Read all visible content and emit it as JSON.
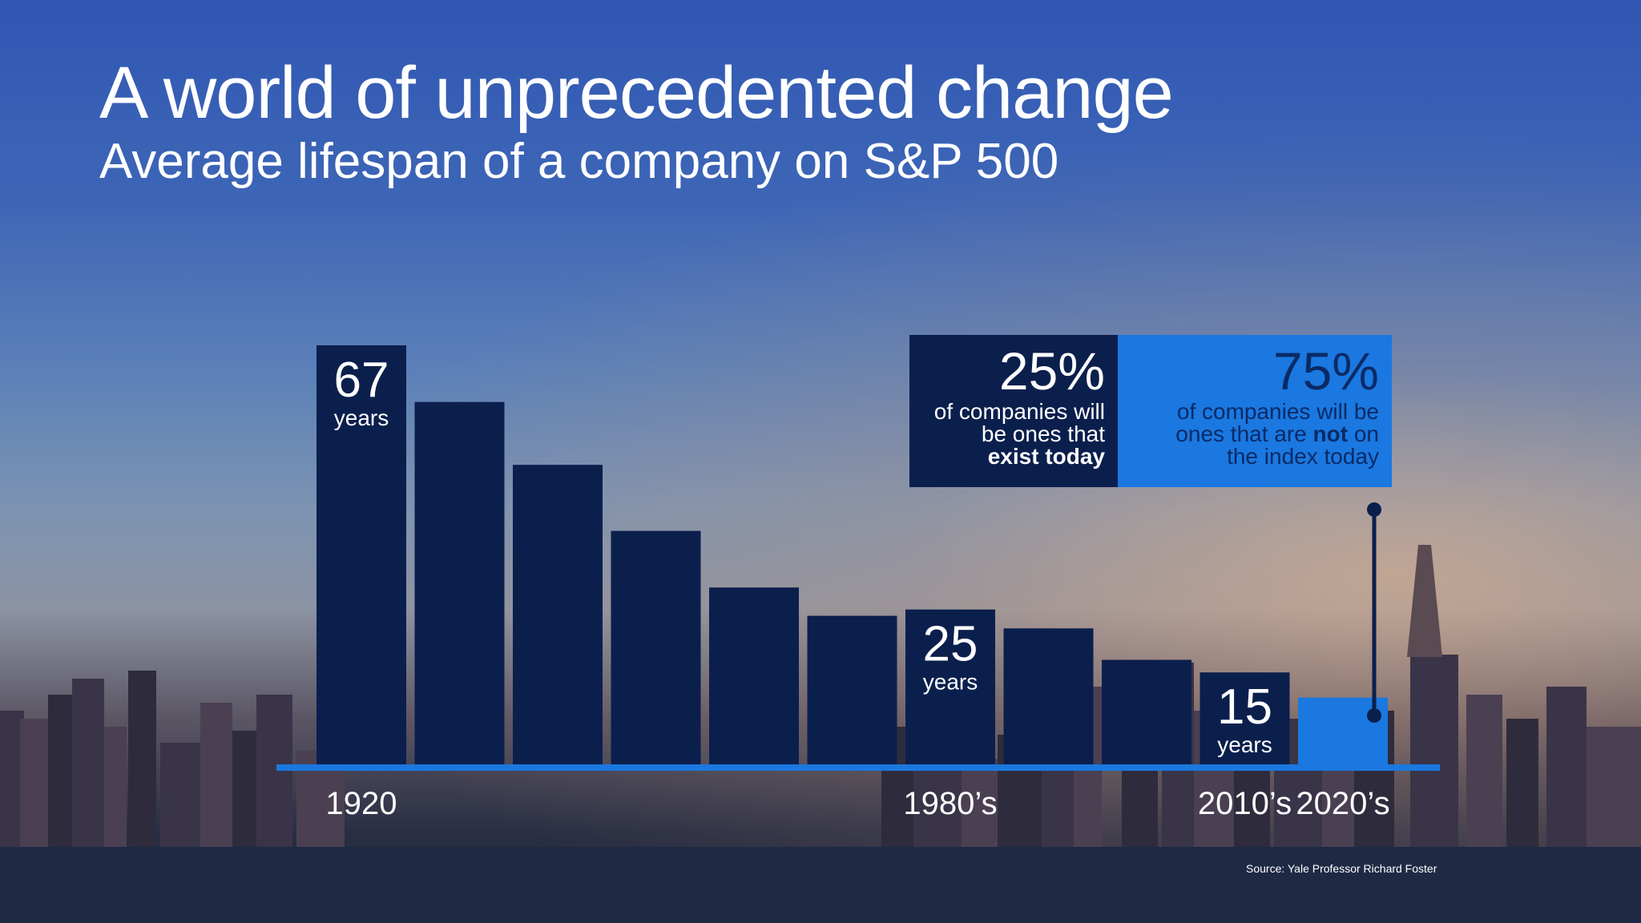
{
  "slide": {
    "title": "A world of unprecedented change",
    "subtitle": "Average lifespan of a company on S&P 500",
    "source": "Source: Yale Professor Richard Foster"
  },
  "callouts": {
    "left": {
      "percent": "25%",
      "line1": "of companies will",
      "line2": "be ones that",
      "line3_bold": "exist today"
    },
    "right": {
      "percent": "75%",
      "line1": "of companies will be",
      "line2_pre": "ones that are ",
      "line2_bold": "not",
      "line2_post": " on",
      "line3": "the index today"
    }
  },
  "colors": {
    "bar": "#0b1f4d",
    "highlight_bar": "#1a78e0",
    "axis": "#1a78e0",
    "text": "#ffffff"
  },
  "chart_data": {
    "type": "bar",
    "title": "Average lifespan of a company on S&P 500",
    "values": [
      67,
      58,
      48,
      37.5,
      28.5,
      24,
      25,
      22,
      17,
      15,
      11
    ],
    "highlight_index": 10,
    "ylim": [
      0,
      75
    ],
    "grid": false,
    "x_tick_labels": [
      {
        "index": 0,
        "text": "1920"
      },
      {
        "index": 6,
        "text": "1980’s"
      },
      {
        "index": 9,
        "text": "2010’s"
      },
      {
        "index": 10,
        "text": "2020’s"
      }
    ],
    "data_labels": [
      {
        "index": 0,
        "value": "67",
        "unit": "years"
      },
      {
        "index": 6,
        "value": "25",
        "unit": "years"
      },
      {
        "index": 9,
        "value": "15",
        "unit": "years"
      }
    ]
  }
}
